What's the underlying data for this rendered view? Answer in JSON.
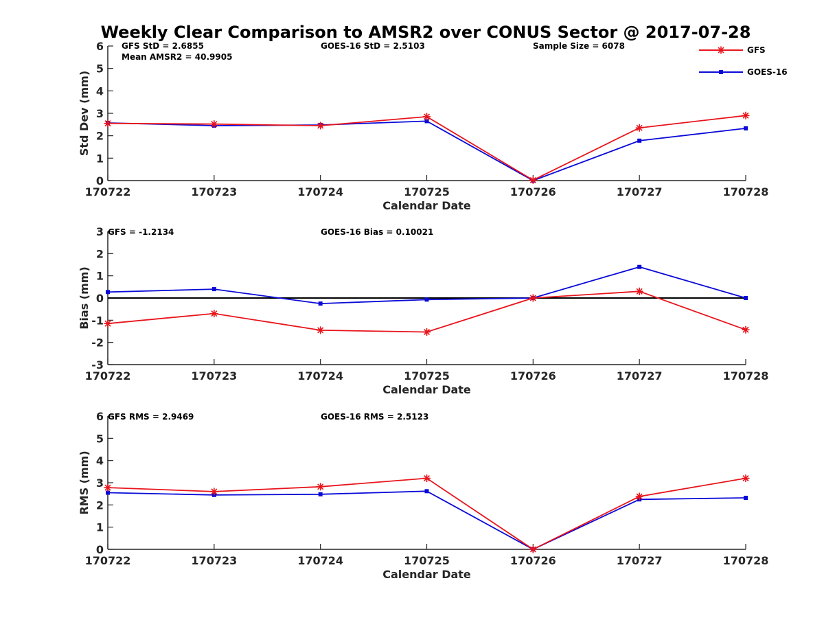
{
  "title": "Weekly Clear Comparison to AMSR2 over CONUS Sector @ 2017-07-28",
  "colors": {
    "gfs": "#e8141c",
    "goes16": "#0a0ad8",
    "axis": "#262626",
    "zero_line": "#000000"
  },
  "legend": {
    "placement": "top-right",
    "entries": [
      "GFS",
      "GOES-16"
    ]
  },
  "chart_data": [
    {
      "type": "line",
      "x": [
        "170722",
        "170723",
        "170724",
        "170725",
        "170726",
        "170727",
        "170728"
      ],
      "xlabel": "Calendar Date",
      "ylabel": "Std Dev (mm)",
      "ylim": [
        0,
        6
      ],
      "yticks": [
        0,
        1,
        2,
        3,
        4,
        5,
        6
      ],
      "grid": false,
      "zero_line": false,
      "annotations": [
        "GFS StD = 2.6855",
        "GOES-16 StD = 2.5103",
        "Sample Size = 6078",
        "Mean AMSR2 = 40.9905"
      ],
      "series": [
        {
          "name": "GFS",
          "values": [
            2.55,
            2.52,
            2.45,
            2.85,
            0.02,
            2.35,
            2.9
          ]
        },
        {
          "name": "GOES-16",
          "values": [
            2.57,
            2.45,
            2.48,
            2.65,
            0.0,
            1.78,
            2.33
          ]
        }
      ]
    },
    {
      "type": "line",
      "x": [
        "170722",
        "170723",
        "170724",
        "170725",
        "170726",
        "170727",
        "170728"
      ],
      "xlabel": "Calendar Date",
      "ylabel": "Bias (mm)",
      "ylim": [
        -3,
        3
      ],
      "yticks": [
        -3,
        -2,
        -1,
        0,
        1,
        2,
        3
      ],
      "grid": false,
      "zero_line": true,
      "annotations": [
        "GFS = -1.2134",
        "GOES-16 Bias  = 0.10021"
      ],
      "series": [
        {
          "name": "GFS",
          "values": [
            -1.15,
            -0.7,
            -1.45,
            -1.53,
            0.0,
            0.3,
            -1.43
          ]
        },
        {
          "name": "GOES-16",
          "values": [
            0.27,
            0.4,
            -0.25,
            -0.07,
            0.0,
            1.4,
            0.0
          ]
        }
      ]
    },
    {
      "type": "line",
      "x": [
        "170722",
        "170723",
        "170724",
        "170725",
        "170726",
        "170727",
        "170728"
      ],
      "xlabel": "Calendar Date",
      "ylabel": "RMS (mm)",
      "ylim": [
        0,
        6
      ],
      "yticks": [
        0,
        1,
        2,
        3,
        4,
        5,
        6
      ],
      "grid": false,
      "zero_line": false,
      "annotations": [
        "GFS RMS = 2.9469",
        "GOES-16 RMS = 2.5123"
      ],
      "series": [
        {
          "name": "GFS",
          "values": [
            2.78,
            2.6,
            2.82,
            3.2,
            0.0,
            2.38,
            3.2
          ]
        },
        {
          "name": "GOES-16",
          "values": [
            2.55,
            2.45,
            2.48,
            2.62,
            0.0,
            2.25,
            2.32
          ]
        }
      ]
    }
  ]
}
